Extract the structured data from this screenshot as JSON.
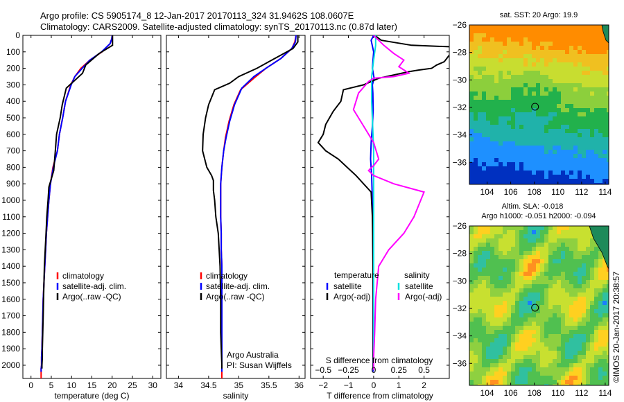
{
  "header": {
    "line1": "Argo profile: CS 5905174_8 12-Jan-2017 20170113_324 31.9462S 108.0607E",
    "line2": "Climatology: CARS2009. Satellite-adjusted climatology: synTS_20170113.nc (0.87d later)"
  },
  "credit": "©IMOS 20-Jan-2017 20:38:57",
  "colors": {
    "clim": "#ff0000",
    "sat": "#0000ff",
    "argo": "#000000",
    "sat_s": "#00e0e0",
    "argo_s": "#ff00ff"
  },
  "chart_data": [
    {
      "type": "line",
      "xlabel": "temperature (deg C)",
      "ylabel": "",
      "xlim": [
        -2,
        32
      ],
      "ylim": [
        2080,
        0
      ],
      "xticks": [
        0,
        5,
        10,
        15,
        20,
        25,
        30
      ],
      "yticks": [
        0,
        100,
        200,
        300,
        400,
        500,
        600,
        700,
        800,
        900,
        1000,
        1100,
        1200,
        1300,
        1400,
        1500,
        1600,
        1700,
        1800,
        1900,
        2000
      ],
      "legend": [
        "climatology",
        "satellite-adj. clim.",
        "Argo(..raw -QC)"
      ],
      "series": [
        {
          "name": "climatology",
          "color": "#ff0000",
          "x": [
            20,
            19.9,
            19.5,
            17.5,
            14.5,
            12.3,
            10.8,
            9.8,
            8.5,
            7.8,
            7.0,
            6.5,
            5.4,
            4.8,
            4.4,
            4.1,
            3.8,
            3.6,
            3.4,
            3.2,
            3.0,
            2.9,
            2.8,
            2.7,
            2.6,
            2.6,
            2.5,
            2.5,
            2.5,
            2.5
          ],
          "y": [
            0,
            20,
            50,
            100,
            150,
            200,
            250,
            300,
            400,
            500,
            600,
            700,
            800,
            900,
            1000,
            1100,
            1200,
            1300,
            1400,
            1500,
            1600,
            1700,
            1800,
            1900,
            1950,
            2000,
            2020,
            2040,
            2060,
            2080
          ]
        },
        {
          "name": "satellite-adj. clim.",
          "color": "#0000ff",
          "x": [
            20,
            19.9,
            19.5,
            17.4,
            14.5,
            12.6,
            10.8,
            9.9,
            8.5,
            7.8,
            7.0,
            6.5,
            5.5,
            4.8,
            4.4,
            4.1,
            3.8,
            3.6,
            3.4,
            3.2,
            3.0,
            2.9,
            2.8,
            2.7,
            2.6,
            2.6,
            2.5,
            2.5
          ],
          "y": [
            0,
            20,
            50,
            100,
            150,
            200,
            250,
            300,
            400,
            500,
            600,
            700,
            800,
            900,
            1000,
            1100,
            1200,
            1300,
            1400,
            1500,
            1600,
            1700,
            1800,
            1900,
            1950,
            2000,
            2020,
            2040
          ]
        },
        {
          "name": "Argo(..raw -QC)",
          "color": "#000000",
          "x": [
            20.1,
            20.1,
            20.1,
            16.8,
            13.5,
            12.7,
            8.7,
            7.7,
            7.2,
            6.3,
            6.0,
            5.6,
            4.4,
            4.2,
            3.9,
            3.7,
            3.5,
            3.3,
            3.2,
            3.1,
            3.0,
            2.9,
            2.8,
            2.8,
            2.7,
            2.7
          ],
          "y": [
            0,
            40,
            60,
            110,
            180,
            230,
            320,
            420,
            500,
            600,
            700,
            820,
            920,
            1000,
            1100,
            1200,
            1300,
            1400,
            1500,
            1600,
            1700,
            1800,
            1900,
            1950,
            2000,
            2020
          ]
        }
      ]
    },
    {
      "type": "line",
      "xlabel": "salinity",
      "ylabel": "",
      "xlim": [
        33.8,
        36.1
      ],
      "ylim": [
        2080,
        0
      ],
      "xticks": [
        34,
        34.5,
        35,
        35.5,
        36
      ],
      "xticklabels": [
        "34",
        "34.5",
        "35",
        "35.5",
        "36"
      ],
      "legend": [
        "climatology",
        "satellite-adj. clim.",
        "Argo(..raw -QC)"
      ],
      "annotations": [
        "Argo Australia",
        "PI: Susan Wijffels"
      ],
      "series": [
        {
          "name": "climatology",
          "color": "#ff0000",
          "x": [
            35.95,
            35.93,
            35.88,
            35.7,
            35.45,
            35.25,
            35.03,
            34.92,
            34.84,
            34.78,
            34.75,
            34.72,
            34.7,
            34.7,
            34.7,
            34.71,
            34.71,
            34.72,
            34.72,
            34.72,
            34.72,
            34.72,
            34.72,
            34.72,
            34.72
          ],
          "y": [
            0,
            40,
            80,
            140,
            200,
            260,
            330,
            420,
            520,
            620,
            700,
            800,
            900,
            1000,
            1100,
            1200,
            1300,
            1400,
            1500,
            1600,
            1700,
            1800,
            1900,
            2000,
            2080
          ]
        },
        {
          "name": "satellite-adj. clim.",
          "color": "#0000ff",
          "x": [
            35.95,
            35.94,
            35.88,
            35.7,
            35.45,
            35.25,
            35.05,
            34.93,
            34.85,
            34.79,
            34.75,
            34.72,
            34.7,
            34.7,
            34.7,
            34.71,
            34.71,
            34.72,
            34.72,
            34.72,
            34.72,
            34.72,
            34.72,
            34.72
          ],
          "y": [
            0,
            40,
            80,
            140,
            200,
            250,
            320,
            420,
            520,
            620,
            700,
            800,
            900,
            1000,
            1100,
            1200,
            1300,
            1400,
            1500,
            1600,
            1700,
            1800,
            1900,
            2040
          ]
        },
        {
          "name": "Argo(..raw -QC)",
          "color": "#000000",
          "x": [
            35.98,
            35.98,
            35.9,
            35.6,
            35.3,
            35.0,
            34.85,
            34.6,
            34.5,
            34.45,
            34.41,
            34.4,
            34.47,
            34.55,
            34.58,
            34.58,
            34.58,
            34.6,
            34.62,
            34.66,
            34.69,
            34.7,
            34.7,
            34.71,
            34.72,
            34.72
          ],
          "y": [
            0,
            40,
            80,
            140,
            200,
            250,
            290,
            330,
            420,
            500,
            600,
            700,
            800,
            850,
            880,
            900,
            940,
            1000,
            1100,
            1200,
            1400,
            1600,
            1800,
            1900,
            2000,
            2020
          ]
        }
      ]
    },
    {
      "type": "line",
      "xlabel": "T difference from climatology",
      "x2label": "S difference from climatology",
      "ylabel": "",
      "xlim": [
        -2.5,
        3.0
      ],
      "ylim": [
        2080,
        0
      ],
      "xticks": [
        -2,
        -1,
        0,
        1,
        2
      ],
      "x2ticks": [
        -0.5,
        -0.25,
        0,
        0.25,
        0.5
      ],
      "legend_groups": [
        "temperature",
        "salinity"
      ],
      "legend": [
        "satellite",
        "Argo(-adj)",
        "satellite",
        "Argo(-adj)"
      ],
      "series": [
        {
          "name": "satellite",
          "group": "temperature",
          "color": "#0000ff",
          "x": [
            0.0,
            -0.1,
            0.0,
            -0.05,
            0.02,
            -0.05,
            -0.03,
            -0.02,
            -0.05,
            -0.1,
            -0.12,
            -0.08,
            -0.06,
            -0.05,
            -0.04,
            -0.03,
            -0.02,
            -0.02,
            -0.02,
            -0.02,
            -0.02,
            -0.02
          ],
          "y": [
            0,
            30,
            100,
            200,
            260,
            300,
            350,
            450,
            550,
            650,
            750,
            850,
            950,
            1050,
            1150,
            1300,
            1450,
            1600,
            1750,
            1900,
            2000,
            2040
          ]
        },
        {
          "name": "Argo(-adj)",
          "group": "temperature",
          "color": "#000000",
          "x": [
            0.05,
            0.3,
            1.5,
            3.2,
            3.0,
            2.8,
            2.5,
            2.3,
            1.8,
            1.4,
            0.2,
            -0.4,
            -1.2,
            -1.3,
            -1.6,
            -1.9,
            -2.0,
            -2.2,
            -1.9,
            -1.4,
            -0.7,
            -0.1,
            -0.05,
            -0.03,
            -0.02,
            -0.02,
            -0.02
          ],
          "y": [
            0,
            30,
            60,
            70,
            120,
            160,
            180,
            200,
            210,
            220,
            260,
            300,
            330,
            400,
            460,
            540,
            600,
            650,
            700,
            750,
            850,
            950,
            1100,
            1300,
            1600,
            1900,
            2020
          ]
        },
        {
          "name": "satellite",
          "group": "salinity",
          "color": "#00e0e0",
          "x": [
            0.02,
            0.02,
            0.0,
            -0.02,
            -0.02,
            -0.01,
            0.0,
            0.0,
            0.0,
            0.0,
            0.0,
            0.0,
            0.0,
            0.0,
            0.0,
            0.0
          ],
          "y": [
            0,
            60,
            150,
            250,
            400,
            550,
            700,
            850,
            1000,
            1200,
            1400,
            1600,
            1800,
            1900,
            2000,
            2030
          ]
        },
        {
          "name": "Argo(-adj)",
          "group": "salinity",
          "color": "#ff00ff",
          "x": [
            0.0,
            0.1,
            0.2,
            0.3,
            0.25,
            0.35,
            0.2,
            0.0,
            -0.05,
            -0.15,
            -0.2,
            -0.1,
            0.0,
            0.05,
            0.0,
            -0.02,
            -0.05,
            0.0,
            0.2,
            0.5,
            0.4,
            0.3,
            0.15,
            0.05,
            0.02,
            0.01,
            0.0,
            0.0
          ],
          "y": [
            0,
            60,
            110,
            150,
            190,
            230,
            250,
            260,
            280,
            350,
            450,
            550,
            650,
            750,
            790,
            800,
            820,
            850,
            900,
            950,
            1100,
            1200,
            1300,
            1400,
            1600,
            1800,
            1950,
            2030
          ]
        }
      ]
    },
    {
      "type": "heatmap",
      "title": "sat. SST: 20  Argo: 19.9",
      "xlim": [
        102.5,
        114.3
      ],
      "ylim": [
        -37.6,
        -26.0
      ],
      "xticks": [
        104,
        106,
        108,
        110,
        112,
        114
      ],
      "yticks": [
        -26,
        -28,
        -30,
        -32,
        -34,
        -36
      ],
      "marker": {
        "lon": 108.06,
        "lat": -31.95
      }
    },
    {
      "type": "heatmap",
      "title": "Altim. SLA: -0.018",
      "subtitle": "Argo h1000: -0.051 h2000: -0.094",
      "xlim": [
        102.5,
        114.3
      ],
      "ylim": [
        -37.6,
        -26.0
      ],
      "xticks": [
        104,
        106,
        108,
        110,
        112,
        114
      ],
      "yticks": [
        -26,
        -28,
        -30,
        -32,
        -34,
        -36
      ],
      "marker": {
        "lon": 108.06,
        "lat": -31.95
      }
    }
  ]
}
